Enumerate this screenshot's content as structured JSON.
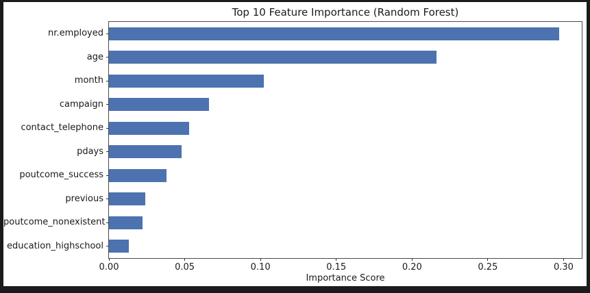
{
  "chart_data": {
    "type": "bar",
    "orientation": "horizontal",
    "title": "Top 10 Feature Importance (Random Forest)",
    "xlabel": "Importance Score",
    "ylabel": "",
    "categories": [
      "nr.employed",
      "age",
      "month",
      "campaign",
      "contact_telephone",
      "pdays",
      "poutcome_success",
      "previous",
      "poutcome_nonexistent",
      "education_highschool"
    ],
    "values": [
      0.297,
      0.216,
      0.102,
      0.066,
      0.053,
      0.048,
      0.038,
      0.024,
      0.022,
      0.013
    ],
    "xlim": [
      0,
      0.312
    ],
    "xticks": [
      0.0,
      0.05,
      0.1,
      0.15,
      0.2,
      0.25,
      0.3
    ],
    "xtick_labels": [
      "0.00",
      "0.05",
      "0.10",
      "0.15",
      "0.20",
      "0.25",
      "0.30"
    ],
    "grid": false,
    "legend": null,
    "colors": {
      "bar": "#4C72B0",
      "figure_background": "#ffffff",
      "page_background": "#1b1b1b",
      "spine": "#4a4a4a",
      "text": "#1a1a1a"
    }
  }
}
